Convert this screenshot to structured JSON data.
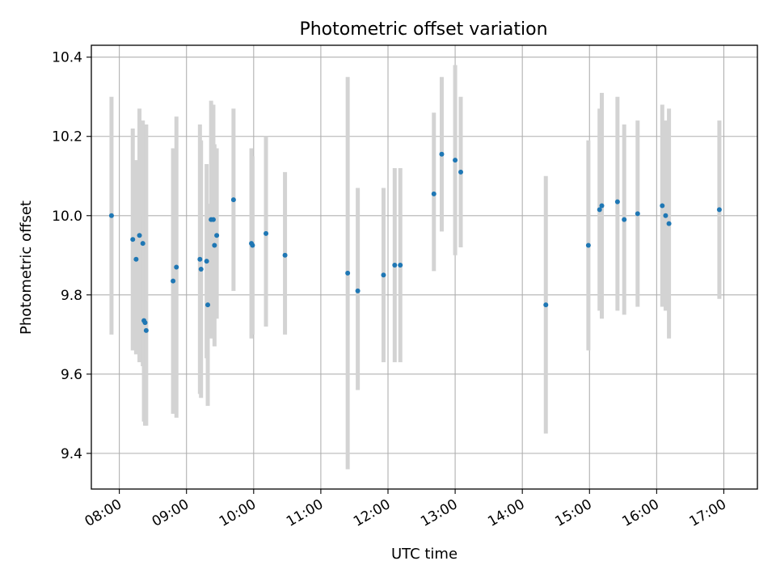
{
  "chart_data": {
    "type": "scatter",
    "title": "Photometric offset variation",
    "xlabel": "UTC time",
    "ylabel": "Photometric offset",
    "xlim": [
      "07:35",
      "17:30"
    ],
    "ylim": [
      9.31,
      10.43
    ],
    "grid": true,
    "x_ticks": [
      "08:00",
      "09:00",
      "10:00",
      "11:00",
      "12:00",
      "13:00",
      "14:00",
      "15:00",
      "16:00",
      "17:00"
    ],
    "y_ticks": [
      "9.4",
      "9.6",
      "9.8",
      "10.0",
      "10.2",
      "10.4"
    ],
    "point_color": "#1f77b4",
    "errorbar_color": "#d3d3d3",
    "series": [
      {
        "name": "",
        "points": [
          {
            "x": "07:53",
            "y": 10.0,
            "lo": 9.7,
            "hi": 10.3
          },
          {
            "x": "08:12",
            "y": 9.94,
            "lo": 9.66,
            "hi": 10.22
          },
          {
            "x": "08:15",
            "y": 9.89,
            "lo": 9.65,
            "hi": 10.14
          },
          {
            "x": "08:18",
            "y": 9.95,
            "lo": 9.63,
            "hi": 10.27
          },
          {
            "x": "08:21",
            "y": 9.93,
            "lo": 9.62,
            "hi": 10.24
          },
          {
            "x": "08:22",
            "y": 9.735,
            "lo": 9.48,
            "hi": 10.0
          },
          {
            "x": "08:23",
            "y": 9.73,
            "lo": 9.47,
            "hi": 10.0
          },
          {
            "x": "08:24",
            "y": 9.71,
            "lo": 9.47,
            "hi": 10.23
          },
          {
            "x": "08:48",
            "y": 9.835,
            "lo": 9.5,
            "hi": 10.17
          },
          {
            "x": "08:51",
            "y": 9.87,
            "lo": 9.49,
            "hi": 10.25
          },
          {
            "x": "09:12",
            "y": 9.89,
            "lo": 9.55,
            "hi": 10.23
          },
          {
            "x": "09:13",
            "y": 9.865,
            "lo": 9.54,
            "hi": 10.19
          },
          {
            "x": "09:18",
            "y": 9.885,
            "lo": 9.64,
            "hi": 10.13
          },
          {
            "x": "09:19",
            "y": 9.775,
            "lo": 9.52,
            "hi": 10.03
          },
          {
            "x": "09:22",
            "y": 9.99,
            "lo": 9.69,
            "hi": 10.29
          },
          {
            "x": "09:24",
            "y": 9.99,
            "lo": 9.7,
            "hi": 10.28
          },
          {
            "x": "09:25",
            "y": 9.925,
            "lo": 9.67,
            "hi": 10.18
          },
          {
            "x": "09:27",
            "y": 9.95,
            "lo": 9.74,
            "hi": 10.17
          },
          {
            "x": "09:42",
            "y": 10.04,
            "lo": 9.81,
            "hi": 10.27
          },
          {
            "x": "09:58",
            "y": 9.93,
            "lo": 9.69,
            "hi": 10.17
          },
          {
            "x": "09:59",
            "y": 9.925,
            "lo": 9.7,
            "hi": 10.15
          },
          {
            "x": "10:11",
            "y": 9.955,
            "lo": 9.72,
            "hi": 10.2
          },
          {
            "x": "10:28",
            "y": 9.9,
            "lo": 9.7,
            "hi": 10.11
          },
          {
            "x": "11:24",
            "y": 9.855,
            "lo": 9.36,
            "hi": 10.35
          },
          {
            "x": "11:33",
            "y": 9.81,
            "lo": 9.56,
            "hi": 10.07
          },
          {
            "x": "11:56",
            "y": 9.85,
            "lo": 9.63,
            "hi": 10.07
          },
          {
            "x": "12:06",
            "y": 9.875,
            "lo": 9.63,
            "hi": 10.12
          },
          {
            "x": "12:11",
            "y": 9.875,
            "lo": 9.63,
            "hi": 10.12
          },
          {
            "x": "12:41",
            "y": 10.055,
            "lo": 9.86,
            "hi": 10.26
          },
          {
            "x": "12:48",
            "y": 10.155,
            "lo": 9.96,
            "hi": 10.35
          },
          {
            "x": "13:00",
            "y": 10.14,
            "lo": 9.9,
            "hi": 10.38
          },
          {
            "x": "13:05",
            "y": 10.11,
            "lo": 9.92,
            "hi": 10.3
          },
          {
            "x": "14:21",
            "y": 9.775,
            "lo": 9.45,
            "hi": 10.1
          },
          {
            "x": "14:59",
            "y": 9.925,
            "lo": 9.66,
            "hi": 10.19
          },
          {
            "x": "15:09",
            "y": 10.015,
            "lo": 9.76,
            "hi": 10.27
          },
          {
            "x": "15:11",
            "y": 10.025,
            "lo": 9.74,
            "hi": 10.31
          },
          {
            "x": "15:25",
            "y": 10.035,
            "lo": 9.76,
            "hi": 10.3
          },
          {
            "x": "15:31",
            "y": 9.99,
            "lo": 9.75,
            "hi": 10.23
          },
          {
            "x": "15:43",
            "y": 10.005,
            "lo": 9.77,
            "hi": 10.24
          },
          {
            "x": "16:05",
            "y": 10.025,
            "lo": 9.77,
            "hi": 10.28
          },
          {
            "x": "16:08",
            "y": 10.0,
            "lo": 9.76,
            "hi": 10.24
          },
          {
            "x": "16:11",
            "y": 9.98,
            "lo": 9.69,
            "hi": 10.27
          },
          {
            "x": "16:56",
            "y": 10.015,
            "lo": 9.79,
            "hi": 10.24
          }
        ]
      }
    ]
  }
}
